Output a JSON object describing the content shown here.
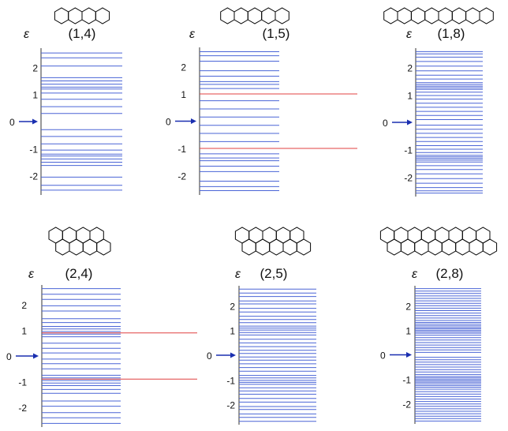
{
  "figure": {
    "epsilon_symbol": "ε",
    "zero_label": "0",
    "colors": {
      "level": "#4a64d6",
      "highlight": "#e04040",
      "arrow": "#1a2fb0",
      "axis": "#333333",
      "hex": "#000000"
    },
    "panels": [
      {
        "title": "(1,4)",
        "hex_rows": [
          4
        ],
        "y_ticks": [
          "2",
          "1",
          "0",
          "-1",
          "-2"
        ],
        "energy_range": [
          -2.65,
          2.65
        ],
        "levels": [
          2.53,
          2.35,
          2.05,
          1.62,
          1.5,
          1.38,
          1.27,
          1.2,
          1.05,
          0.82,
          0.55,
          0.3,
          -0.3,
          -0.55,
          -0.82,
          -1.05,
          -1.2,
          -1.27,
          -1.38,
          -1.5,
          -1.62,
          -2.05,
          -2.35,
          -2.53
        ],
        "highlight_levels": []
      },
      {
        "title": "(1,5)",
        "hex_rows": [
          5
        ],
        "y_ticks": [
          "2",
          "1",
          "0",
          "-1",
          "-2"
        ],
        "energy_range": [
          -2.65,
          2.65
        ],
        "levels": [
          2.55,
          2.4,
          2.2,
          1.85,
          1.65,
          1.45,
          1.35,
          1.2,
          1.0,
          0.75,
          0.45,
          0.15,
          -0.15,
          -0.45,
          -0.75,
          -1.0,
          -1.2,
          -1.35,
          -1.45,
          -1.65,
          -1.85,
          -2.2,
          -2.4,
          -2.55
        ],
        "highlight_levels": [
          1.0,
          -1.0
        ]
      },
      {
        "title": "(1,8)",
        "hex_rows": [
          8
        ],
        "y_ticks": [
          "2",
          "1",
          "0",
          "-1",
          "-2"
        ],
        "energy_range": [
          -2.65,
          2.65
        ],
        "levels": [
          2.58,
          2.5,
          2.38,
          2.22,
          2.05,
          1.88,
          1.72,
          1.58,
          1.45,
          1.38,
          1.32,
          1.26,
          1.2,
          1.1,
          0.98,
          0.85,
          0.7,
          0.55,
          0.4,
          0.25,
          0.1,
          -0.1,
          -0.25,
          -0.4,
          -0.55,
          -0.7,
          -0.85,
          -0.98,
          -1.1,
          -1.2,
          -1.26,
          -1.32,
          -1.38,
          -1.45,
          -1.58,
          -1.72,
          -1.88,
          -2.05,
          -2.22,
          -2.38,
          -2.5,
          -2.58
        ],
        "highlight_levels": []
      },
      {
        "title": "(2,4)",
        "hex_rows": [
          4,
          4
        ],
        "y_ticks": [
          "2",
          "1",
          "0",
          "-1",
          "-2"
        ],
        "energy_range": [
          -2.7,
          2.7
        ],
        "levels": [
          2.62,
          2.4,
          2.2,
          1.95,
          1.75,
          1.45,
          1.3,
          1.15,
          1.05,
          0.95,
          0.85,
          0.75,
          0.5,
          0.3,
          0.12,
          -0.12,
          -0.3,
          -0.5,
          -0.75,
          -0.85,
          -0.95,
          -1.05,
          -1.15,
          -1.3,
          -1.45,
          -1.75,
          -1.95,
          -2.2,
          -2.4,
          -2.62
        ],
        "highlight_levels": [
          0.9,
          -0.9
        ]
      },
      {
        "title": "(2,5)",
        "hex_rows": [
          5,
          5
        ],
        "y_ticks": [
          "2",
          "1",
          "0",
          "-1",
          "-2"
        ],
        "energy_range": [
          -2.75,
          2.75
        ],
        "levels": [
          2.68,
          2.52,
          2.38,
          2.2,
          2.08,
          1.9,
          1.75,
          1.58,
          1.45,
          1.32,
          1.18,
          1.1,
          1.02,
          0.92,
          0.82,
          0.65,
          0.5,
          0.35,
          0.2,
          0.07,
          -0.07,
          -0.2,
          -0.35,
          -0.5,
          -0.65,
          -0.82,
          -0.92,
          -1.02,
          -1.1,
          -1.18,
          -1.32,
          -1.45,
          -1.58,
          -1.75,
          -1.9,
          -2.08,
          -2.2,
          -2.38,
          -2.52,
          -2.68
        ],
        "highlight_levels": []
      },
      {
        "title": "(2,8)",
        "hex_rows": [
          8,
          8
        ],
        "y_ticks": [
          "2",
          "1",
          "0",
          "-1",
          "-2"
        ],
        "energy_range": [
          -2.75,
          2.75
        ],
        "levels": [
          2.7,
          2.6,
          2.5,
          2.4,
          2.3,
          2.2,
          2.1,
          2.0,
          1.9,
          1.8,
          1.7,
          1.6,
          1.5,
          1.4,
          1.32,
          1.25,
          1.18,
          1.12,
          1.06,
          1.0,
          0.94,
          0.88,
          0.8,
          0.7,
          0.6,
          0.5,
          0.4,
          0.3,
          0.2,
          0.1,
          -0.1,
          -0.2,
          -0.3,
          -0.4,
          -0.5,
          -0.6,
          -0.7,
          -0.8,
          -0.88,
          -0.94,
          -1.0,
          -1.06,
          -1.12,
          -1.18,
          -1.25,
          -1.32,
          -1.4,
          -1.5,
          -1.6,
          -1.7,
          -1.8,
          -1.9,
          -2.0,
          -2.1,
          -2.2,
          -2.3,
          -2.4,
          -2.5,
          -2.6,
          -2.7
        ],
        "highlight_levels": []
      }
    ]
  }
}
